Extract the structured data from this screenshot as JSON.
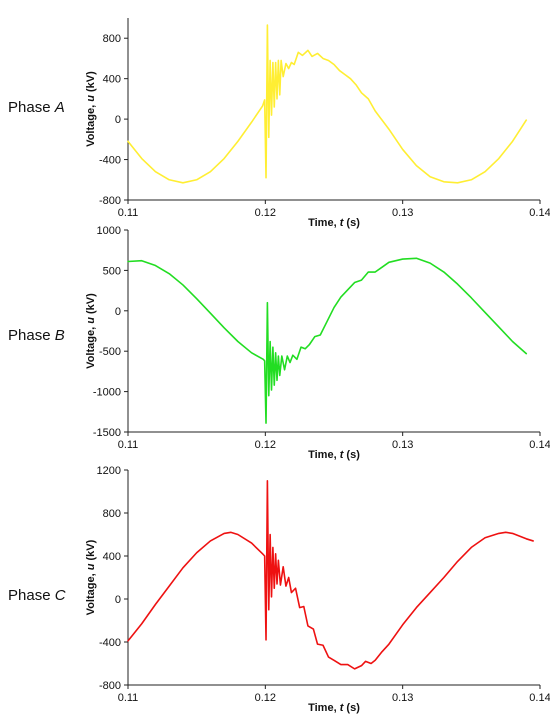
{
  "panels": [
    {
      "phase_label": {
        "prefix": "Phase ",
        "letter": "A"
      },
      "color": "#ffee33"
    },
    {
      "phase_label": {
        "prefix": "Phase ",
        "letter": "B"
      },
      "color": "#22dd22"
    },
    {
      "phase_label": {
        "prefix": "Phase ",
        "letter": "C"
      },
      "color": "#ee1111"
    }
  ],
  "chart_data": [
    {
      "type": "line",
      "title": "",
      "xlabel": "Time, t (s)",
      "ylabel": "Voltage, u (kV)",
      "xlim": [
        0.11,
        0.14
      ],
      "ylim": [
        -800,
        1000
      ],
      "x_ticks": [
        0.11,
        0.12,
        0.13,
        0.14
      ],
      "y_ticks": [
        -800,
        -400,
        0,
        400,
        800
      ],
      "grid": false,
      "series": [
        {
          "color": "#ffee33",
          "points": [
            [
              0.11,
              -220
            ],
            [
              0.111,
              -390
            ],
            [
              0.112,
              -520
            ],
            [
              0.113,
              -600
            ],
            [
              0.114,
              -630
            ],
            [
              0.115,
              -600
            ],
            [
              0.116,
              -520
            ],
            [
              0.117,
              -390
            ],
            [
              0.118,
              -220
            ],
            [
              0.119,
              -30
            ],
            [
              0.1198,
              130
            ],
            [
              0.11995,
              190
            ],
            [
              0.12005,
              -580
            ],
            [
              0.12015,
              930
            ],
            [
              0.12025,
              -180
            ],
            [
              0.12035,
              580
            ],
            [
              0.12045,
              40
            ],
            [
              0.12055,
              560
            ],
            [
              0.12065,
              120
            ],
            [
              0.12075,
              560
            ],
            [
              0.12085,
              200
            ],
            [
              0.12095,
              580
            ],
            [
              0.12105,
              240
            ],
            [
              0.12115,
              580
            ],
            [
              0.1213,
              420
            ],
            [
              0.1215,
              550
            ],
            [
              0.1217,
              500
            ],
            [
              0.1219,
              560
            ],
            [
              0.1221,
              540
            ],
            [
              0.1224,
              660
            ],
            [
              0.1227,
              630
            ],
            [
              0.1231,
              680
            ],
            [
              0.1234,
              620
            ],
            [
              0.1238,
              650
            ],
            [
              0.1242,
              600
            ],
            [
              0.1246,
              580
            ],
            [
              0.125,
              540
            ],
            [
              0.1254,
              480
            ],
            [
              0.1258,
              440
            ],
            [
              0.1262,
              400
            ],
            [
              0.1266,
              340
            ],
            [
              0.127,
              260
            ],
            [
              0.1275,
              200
            ],
            [
              0.128,
              80
            ],
            [
              0.129,
              -100
            ],
            [
              0.13,
              -300
            ],
            [
              0.131,
              -460
            ],
            [
              0.132,
              -570
            ],
            [
              0.133,
              -620
            ],
            [
              0.134,
              -630
            ],
            [
              0.135,
              -600
            ],
            [
              0.136,
              -520
            ],
            [
              0.137,
              -390
            ],
            [
              0.138,
              -220
            ],
            [
              0.139,
              -10
            ]
          ]
        }
      ]
    },
    {
      "type": "line",
      "title": "",
      "xlabel": "Time, t (s)",
      "ylabel": "Voltage, u (kV)",
      "xlim": [
        0.11,
        0.14
      ],
      "ylim": [
        -1500,
        1000
      ],
      "x_ticks": [
        0.11,
        0.12,
        0.13,
        0.14
      ],
      "y_ticks": [
        -1500,
        -1000,
        -500,
        0,
        500,
        1000
      ],
      "grid": false,
      "series": [
        {
          "color": "#22dd22",
          "points": [
            [
              0.11,
              610
            ],
            [
              0.111,
              620
            ],
            [
              0.112,
              560
            ],
            [
              0.113,
              460
            ],
            [
              0.114,
              320
            ],
            [
              0.115,
              150
            ],
            [
              0.116,
              -30
            ],
            [
              0.117,
              -210
            ],
            [
              0.118,
              -380
            ],
            [
              0.119,
              -520
            ],
            [
              0.11985,
              -600
            ],
            [
              0.11995,
              -620
            ],
            [
              0.12005,
              -1390
            ],
            [
              0.12015,
              100
            ],
            [
              0.12025,
              -1050
            ],
            [
              0.12035,
              -380
            ],
            [
              0.12045,
              -980
            ],
            [
              0.12055,
              -450
            ],
            [
              0.12065,
              -920
            ],
            [
              0.12075,
              -520
            ],
            [
              0.12085,
              -860
            ],
            [
              0.12095,
              -560
            ],
            [
              0.12105,
              -800
            ],
            [
              0.1212,
              -560
            ],
            [
              0.1214,
              -730
            ],
            [
              0.1216,
              -560
            ],
            [
              0.1218,
              -640
            ],
            [
              0.122,
              -550
            ],
            [
              0.1223,
              -600
            ],
            [
              0.1226,
              -450
            ],
            [
              0.1229,
              -470
            ],
            [
              0.1232,
              -420
            ],
            [
              0.1236,
              -320
            ],
            [
              0.124,
              -300
            ],
            [
              0.1245,
              -130
            ],
            [
              0.125,
              40
            ],
            [
              0.1255,
              170
            ],
            [
              0.126,
              260
            ],
            [
              0.1265,
              350
            ],
            [
              0.127,
              380
            ],
            [
              0.1275,
              480
            ],
            [
              0.128,
              480
            ],
            [
              0.1285,
              540
            ],
            [
              0.129,
              600
            ],
            [
              0.13,
              640
            ],
            [
              0.131,
              650
            ],
            [
              0.132,
              590
            ],
            [
              0.133,
              480
            ],
            [
              0.134,
              330
            ],
            [
              0.135,
              160
            ],
            [
              0.136,
              -20
            ],
            [
              0.137,
              -200
            ],
            [
              0.138,
              -380
            ],
            [
              0.139,
              -530
            ]
          ]
        }
      ]
    },
    {
      "type": "line",
      "title": "",
      "xlabel": "Time, t (s)",
      "ylabel": "Voltage, u (kV)",
      "xlim": [
        0.11,
        0.14
      ],
      "ylim": [
        -800,
        1200
      ],
      "x_ticks": [
        0.11,
        0.12,
        0.13,
        0.14
      ],
      "y_ticks": [
        -800,
        -400,
        0,
        400,
        800,
        1200
      ],
      "grid": false,
      "series": [
        {
          "color": "#ee1111",
          "points": [
            [
              0.11,
              -390
            ],
            [
              0.111,
              -230
            ],
            [
              0.112,
              -50
            ],
            [
              0.113,
              120
            ],
            [
              0.114,
              290
            ],
            [
              0.115,
              430
            ],
            [
              0.116,
              540
            ],
            [
              0.117,
              610
            ],
            [
              0.1175,
              620
            ],
            [
              0.118,
              600
            ],
            [
              0.119,
              520
            ],
            [
              0.1198,
              420
            ],
            [
              0.11995,
              400
            ],
            [
              0.12005,
              -380
            ],
            [
              0.12015,
              1100
            ],
            [
              0.12025,
              -100
            ],
            [
              0.12035,
              600
            ],
            [
              0.12045,
              20
            ],
            [
              0.12055,
              480
            ],
            [
              0.12065,
              100
            ],
            [
              0.12075,
              420
            ],
            [
              0.12085,
              140
            ],
            [
              0.12095,
              360
            ],
            [
              0.1211,
              130
            ],
            [
              0.1213,
              300
            ],
            [
              0.1215,
              120
            ],
            [
              0.1217,
              200
            ],
            [
              0.1219,
              60
            ],
            [
              0.1222,
              100
            ],
            [
              0.1225,
              -80
            ],
            [
              0.1228,
              -70
            ],
            [
              0.1231,
              -250
            ],
            [
              0.1235,
              -280
            ],
            [
              0.1238,
              -420
            ],
            [
              0.1242,
              -430
            ],
            [
              0.1246,
              -540
            ],
            [
              0.125,
              -570
            ],
            [
              0.1255,
              -610
            ],
            [
              0.126,
              -610
            ],
            [
              0.1265,
              -650
            ],
            [
              0.127,
              -620
            ],
            [
              0.1273,
              -580
            ],
            [
              0.1277,
              -600
            ],
            [
              0.128,
              -570
            ],
            [
              0.1285,
              -490
            ],
            [
              0.129,
              -420
            ],
            [
              0.13,
              -240
            ],
            [
              0.131,
              -80
            ],
            [
              0.132,
              60
            ],
            [
              0.133,
              200
            ],
            [
              0.134,
              350
            ],
            [
              0.135,
              480
            ],
            [
              0.136,
              570
            ],
            [
              0.137,
              610
            ],
            [
              0.1375,
              620
            ],
            [
              0.138,
              610
            ],
            [
              0.139,
              560
            ],
            [
              0.1395,
              540
            ]
          ]
        }
      ]
    }
  ]
}
